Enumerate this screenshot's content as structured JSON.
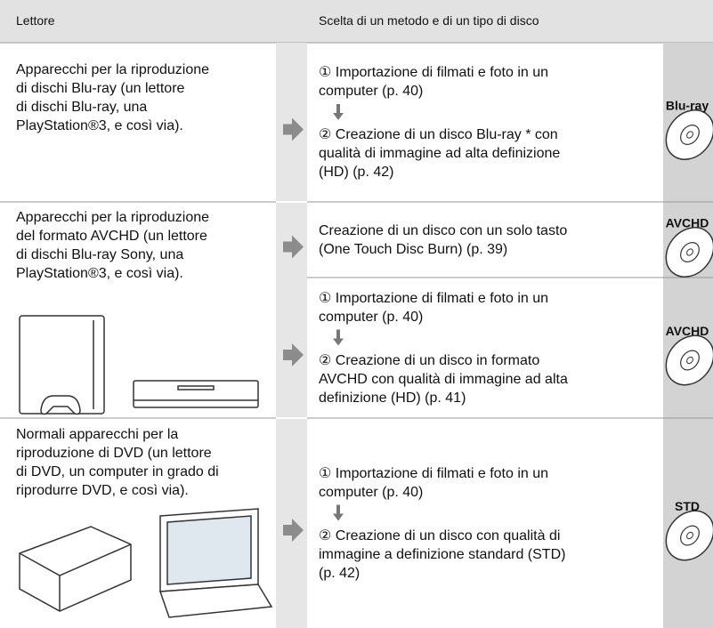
{
  "header": {
    "player": "Lettore",
    "method": "Scelta di un metodo e di un tipo di disco"
  },
  "rows": [
    {
      "player": [
        "Apparecchi per la riproduzione",
        "di dischi Blu-ray (un lettore",
        "di dischi Blu-ray, una",
        "PlayStation®3, e così via)."
      ],
      "options": [
        {
          "steps": [
            [
              "① Importazione di filmati e foto in un",
              "computer (p. 40)"
            ],
            [
              "② Creazione di un disco Blu-ray * con",
              "qualità di immagine ad alta definizione",
              "(HD) (p. 42)"
            ]
          ],
          "disc": "Blu-ray"
        }
      ]
    },
    {
      "player": [
        "Apparecchi per la riproduzione",
        "del formato AVCHD (un lettore",
        "di dischi Blu-ray Sony, una",
        "PlayStation®3, e così via)."
      ],
      "options": [
        {
          "steps": [
            [
              "Creazione di un disco con un solo tasto",
              "(One Touch Disc Burn) (p. 39)"
            ]
          ],
          "disc": "AVCHD"
        },
        {
          "steps": [
            [
              "① Importazione di filmati e foto in un",
              "computer (p. 40)"
            ],
            [
              "② Creazione di un disco in formato",
              "AVCHD con qualità di immagine ad alta",
              "definizione (HD) (p. 41)"
            ]
          ],
          "disc": "AVCHD"
        }
      ]
    },
    {
      "player": [
        "Normali apparecchi per la",
        "riproduzione di DVD (un lettore",
        "di DVD, un computer in grado di",
        "riprodurre DVD, e così via)."
      ],
      "options": [
        {
          "steps": [
            [
              "① Importazione di filmati e foto in un",
              "computer (p. 40)"
            ],
            [
              "② Creazione di un disco con qualità di",
              "immagine a definizione standard (STD)",
              "(p. 42)"
            ]
          ],
          "disc": "STD"
        }
      ]
    }
  ]
}
